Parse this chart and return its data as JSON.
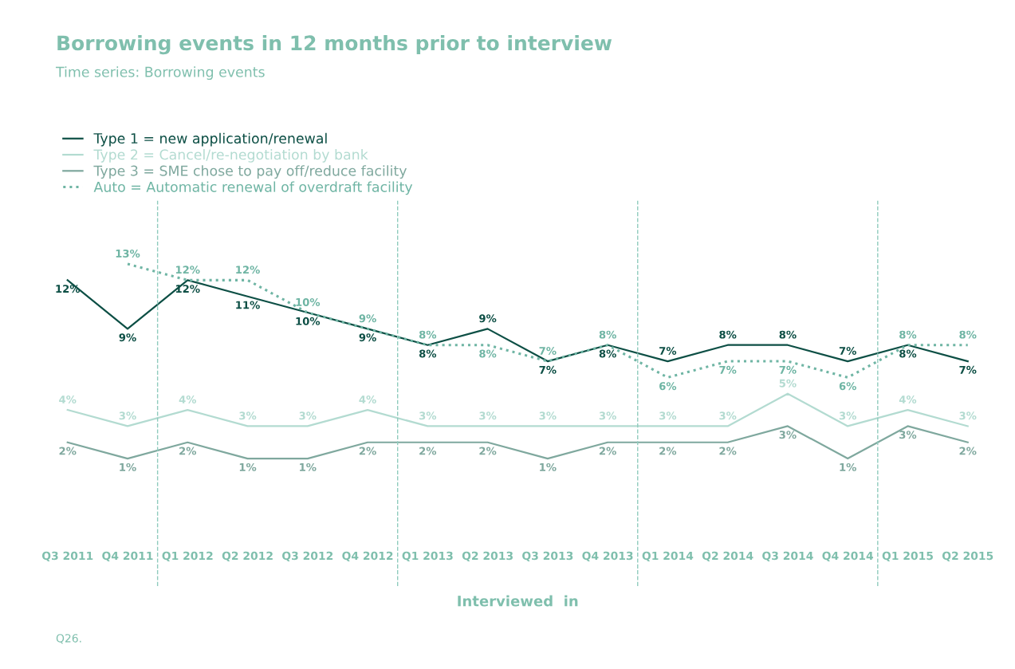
{
  "chart_data": {
    "type": "line",
    "title": "Borrowing events in 12 months prior to interview",
    "subtitle": "Time series: Borrowing events",
    "xlabel": "Interviewed  in",
    "annotations": [
      "Q26."
    ],
    "categories": [
      "Q3 2011",
      "Q4 2011",
      "Q1 2012",
      "Q2 2012",
      "Q3 2012",
      "Q4 2012",
      "Q1 2013",
      "Q2 2013",
      "Q3 2013",
      "Q4 2013",
      "Q1 2014",
      "Q2 2014",
      "Q3 2014",
      "Q4 2014",
      "Q1 2015",
      "Q2 2015"
    ],
    "series": [
      {
        "name": "Type 1 = new application/renewal",
        "color": "#0d4f45",
        "line_style": "solid",
        "values": [
          12,
          9,
          12,
          11,
          10,
          9,
          8,
          9,
          7,
          8,
          7,
          8,
          8,
          7,
          8,
          7
        ],
        "value_labels": [
          "12%",
          "9%",
          "12%",
          "11%",
          "10%",
          "9%",
          "8%",
          "9%",
          "7%",
          "8%",
          "7%",
          "8%",
          "8%",
          "7%",
          "8%",
          "7%"
        ]
      },
      {
        "name": "Type 2 = Cancel/re-negotiation by bank",
        "color": "#b3dbd1",
        "line_style": "solid",
        "values": [
          4,
          3,
          4,
          3,
          3,
          4,
          3,
          3,
          3,
          3,
          3,
          3,
          5,
          3,
          4,
          3
        ],
        "value_labels": [
          "4%",
          "3%",
          "4%",
          "3%",
          "3%",
          "4%",
          "3%",
          "3%",
          "3%",
          "3%",
          "3%",
          "3%",
          "5%",
          "3%",
          "4%",
          "3%"
        ]
      },
      {
        "name": "Type 3 = SME chose to pay off/reduce facility",
        "color": "#7fa89e",
        "line_style": "solid",
        "values": [
          2,
          1,
          2,
          1,
          1,
          2,
          2,
          2,
          1,
          2,
          2,
          2,
          3,
          1,
          3,
          2
        ],
        "value_labels": [
          "2%",
          "1%",
          "2%",
          "1%",
          "1%",
          "2%",
          "2%",
          "2%",
          "1%",
          "2%",
          "2%",
          "2%",
          "3%",
          "1%",
          "3%",
          "2%"
        ]
      },
      {
        "name": "Auto = Automatic renewal of overdraft facility",
        "color": "#6fb5a4",
        "line_style": "dotted",
        "values": [
          null,
          13,
          12,
          12,
          10,
          9,
          8,
          8,
          7,
          8,
          6,
          7,
          7,
          6,
          8,
          8
        ],
        "value_labels": [
          null,
          "13%",
          "12%",
          "12%",
          "10%",
          "9%",
          "8%",
          "8%",
          "7%",
          "8%",
          "6%",
          "7%",
          "7%",
          "6%",
          "8%",
          "8%"
        ]
      }
    ],
    "legend": "top left",
    "tick_labels": "x",
    "marker": "none"
  }
}
